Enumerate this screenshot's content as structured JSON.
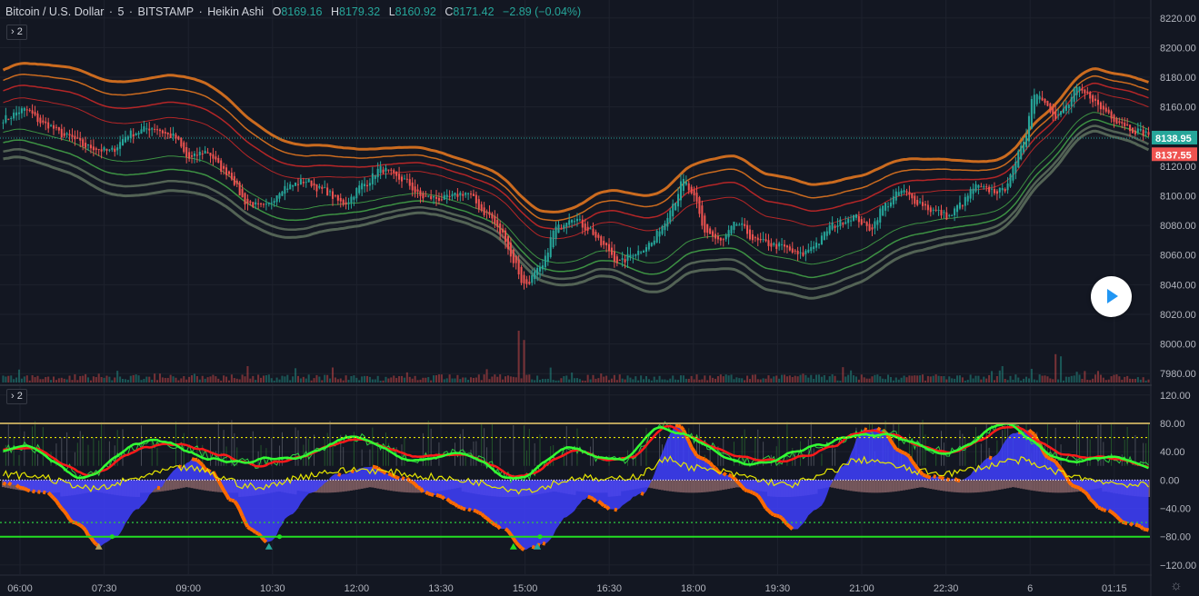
{
  "header": {
    "symbol": "Bitcoin / U.S. Dollar",
    "interval": "5",
    "exchange": "BITSTAMP",
    "chart_style": "Heikin Ashi",
    "o_label": "O",
    "o_value": "8169.16",
    "h_label": "H",
    "h_value": "8179.32",
    "l_label": "L",
    "l_value": "8160.92",
    "c_label": "C",
    "c_value": "8171.42",
    "change": "−2.89 (−0.04%)"
  },
  "indicator_toggles": {
    "main": "2",
    "lower": "2"
  },
  "colors": {
    "background": "#131722",
    "grid": "#1e222d",
    "up": "#26a69a",
    "down": "#ef5350",
    "band_orange": "#e0741f",
    "band_red": "#c62828",
    "band_green": "#43a047",
    "band_grey": "#5b6b5b",
    "osc_blue": "#3f3fff",
    "osc_orange": "#ff6a00",
    "osc_pink": "#c48a8a",
    "line_green": "#33ff33",
    "line_red": "#ff1a1a",
    "line_yellow": "#e6e600",
    "level_gold": "#b8a05a"
  },
  "chart_data": [
    {
      "type": "candlestick",
      "name": "price",
      "style": "Heikin Ashi",
      "x_ticks": [
        "06:00",
        "07:30",
        "09:00",
        "10:30",
        "12:00",
        "13:30",
        "15:00",
        "16:30",
        "18:00",
        "19:30",
        "21:00",
        "22:30",
        "6",
        "01:15"
      ],
      "y_ticks": [
        7980,
        8000,
        8020,
        8040,
        8060,
        8080,
        8100,
        8120,
        8140,
        8160,
        8180,
        8200,
        8220
      ],
      "ylim": [
        7974,
        8226
      ],
      "price_labels": [
        {
          "value": 8138.95,
          "text": "8138.95",
          "color": "#26a69a"
        },
        {
          "value": 8137.55,
          "text": "8137.55",
          "color": "#ef5350"
        }
      ],
      "anchors": [
        [
          0,
          8152
        ],
        [
          8,
          8158
        ],
        [
          16,
          8148
        ],
        [
          24,
          8140
        ],
        [
          32,
          8133
        ],
        [
          40,
          8130
        ],
        [
          48,
          8142
        ],
        [
          56,
          8146
        ],
        [
          64,
          8140
        ],
        [
          70,
          8125
        ],
        [
          76,
          8130
        ],
        [
          84,
          8116
        ],
        [
          92,
          8095
        ],
        [
          98,
          8092
        ],
        [
          106,
          8106
        ],
        [
          114,
          8110
        ],
        [
          120,
          8104
        ],
        [
          128,
          8095
        ],
        [
          136,
          8108
        ],
        [
          142,
          8118
        ],
        [
          150,
          8111
        ],
        [
          158,
          8099
        ],
        [
          166,
          8098
        ],
        [
          174,
          8102
        ],
        [
          182,
          8088
        ],
        [
          188,
          8074
        ],
        [
          192,
          8056
        ],
        [
          196,
          8040
        ],
        [
          202,
          8050
        ],
        [
          208,
          8078
        ],
        [
          214,
          8086
        ],
        [
          220,
          8078
        ],
        [
          226,
          8066
        ],
        [
          232,
          8055
        ],
        [
          238,
          8062
        ],
        [
          244,
          8068
        ],
        [
          248,
          8080
        ],
        [
          252,
          8095
        ],
        [
          256,
          8110
        ],
        [
          260,
          8098
        ],
        [
          264,
          8076
        ],
        [
          270,
          8069
        ],
        [
          276,
          8081
        ],
        [
          284,
          8069
        ],
        [
          292,
          8066
        ],
        [
          300,
          8060
        ],
        [
          306,
          8068
        ],
        [
          312,
          8080
        ],
        [
          320,
          8086
        ],
        [
          326,
          8078
        ],
        [
          332,
          8094
        ],
        [
          338,
          8103
        ],
        [
          344,
          8096
        ],
        [
          350,
          8090
        ],
        [
          356,
          8086
        ],
        [
          360,
          8094
        ],
        [
          366,
          8106
        ],
        [
          370,
          8104
        ],
        [
          376,
          8103
        ],
        [
          380,
          8118
        ],
        [
          384,
          8138
        ],
        [
          388,
          8170
        ],
        [
          392,
          8165
        ],
        [
          396,
          8152
        ],
        [
          400,
          8160
        ],
        [
          404,
          8172
        ],
        [
          408,
          8168
        ],
        [
          414,
          8158
        ],
        [
          420,
          8150
        ],
        [
          426,
          8144
        ],
        [
          431,
          8142
        ]
      ],
      "volume_spikes": [
        [
          92,
          30
        ],
        [
          194,
          95
        ],
        [
          196,
          78
        ],
        [
          376,
          30
        ],
        [
          396,
          52
        ],
        [
          398,
          48
        ],
        [
          402,
          12
        ]
      ]
    },
    {
      "type": "line",
      "name": "oscillator",
      "y_ticks": [
        -120,
        -80,
        -40,
        0,
        40,
        80,
        120
      ],
      "ylim": [
        -133,
        130
      ],
      "levels": [
        80,
        60,
        0,
        -60,
        -80
      ],
      "osc_anchors": [
        [
          0,
          -5
        ],
        [
          16,
          -18
        ],
        [
          28,
          -62
        ],
        [
          36,
          -92
        ],
        [
          42,
          -82
        ],
        [
          50,
          -42
        ],
        [
          58,
          -12
        ],
        [
          66,
          18
        ],
        [
          72,
          30
        ],
        [
          78,
          12
        ],
        [
          86,
          -28
        ],
        [
          94,
          -72
        ],
        [
          100,
          -88
        ],
        [
          108,
          -50
        ],
        [
          116,
          -18
        ],
        [
          126,
          8
        ],
        [
          138,
          18
        ],
        [
          150,
          3
        ],
        [
          162,
          -22
        ],
        [
          176,
          -42
        ],
        [
          188,
          -68
        ],
        [
          196,
          -98
        ],
        [
          204,
          -90
        ],
        [
          212,
          -52
        ],
        [
          220,
          -25
        ],
        [
          230,
          -42
        ],
        [
          240,
          -20
        ],
        [
          254,
          78
        ],
        [
          262,
          32
        ],
        [
          272,
          8
        ],
        [
          282,
          -18
        ],
        [
          290,
          -48
        ],
        [
          298,
          -70
        ],
        [
          306,
          -42
        ],
        [
          316,
          20
        ],
        [
          324,
          72
        ],
        [
          330,
          72
        ],
        [
          338,
          40
        ],
        [
          348,
          5
        ],
        [
          360,
          0
        ],
        [
          372,
          32
        ],
        [
          380,
          65
        ],
        [
          386,
          70
        ],
        [
          394,
          30
        ],
        [
          404,
          -10
        ],
        [
          414,
          -42
        ],
        [
          424,
          -62
        ],
        [
          431,
          -70
        ]
      ]
    }
  ]
}
